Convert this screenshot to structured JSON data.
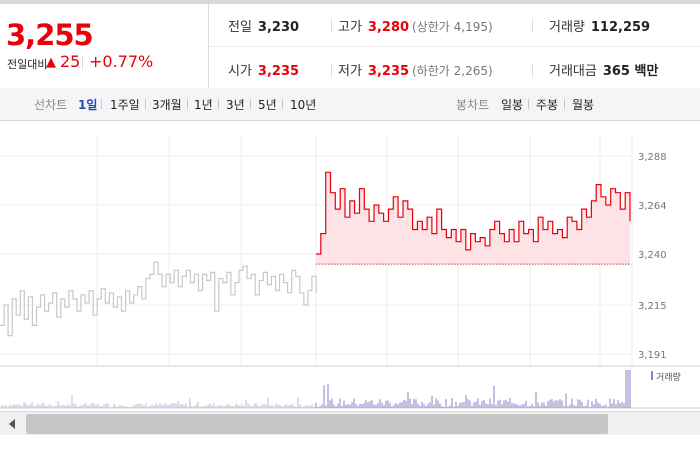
{
  "summary": {
    "price": "3,255",
    "change_label": "전일대비",
    "change_amount": "25",
    "change_rate": "+0.77%",
    "prev_close": {
      "label": "전일",
      "value": "3,230"
    },
    "high": {
      "label": "고가",
      "value": "3,280",
      "limit_label": "(상한가 4,195)"
    },
    "volume": {
      "label": "거래량",
      "value": "112,259"
    },
    "open": {
      "label": "시가",
      "value": "3,235"
    },
    "low": {
      "label": "저가",
      "value": "3,235",
      "limit_label": "(하한가 2,265)"
    },
    "trade_value": {
      "label": "거래대금",
      "value": "365 백만"
    }
  },
  "tabs": {
    "line_label": "선차트",
    "line_tabs": [
      "1일",
      "1주일",
      "3개월",
      "1년",
      "3년",
      "5년",
      "10년"
    ],
    "active": "1일",
    "candle_label": "봉차트",
    "candle_tabs": [
      "일봉",
      "주봉",
      "월봉"
    ]
  },
  "colors": {
    "up": "#e8000b",
    "prev_day_line": "#c8c8c8",
    "fill": "#fde3e5",
    "volume": "#8b82c9",
    "active_tab": "#2348c8"
  },
  "chart_data": {
    "type": "line",
    "title": "",
    "y_ticks": [
      "3,288",
      "3,264",
      "3,240",
      "3,215",
      "3,191"
    ],
    "ylim": [
      3191,
      3288
    ],
    "reference_price": 3235,
    "series": [
      {
        "values": [
          3205,
          3215,
          3200,
          3218,
          3210,
          3222,
          3208,
          3219,
          3205,
          3214,
          3220,
          3212,
          3216,
          3221,
          3209,
          3218,
          3214,
          3222,
          3218,
          3212,
          3220,
          3216,
          3222,
          3210,
          3218,
          3223,
          3216,
          3221,
          3214,
          3219,
          3212,
          3222,
          3216,
          3220,
          3224,
          3218,
          3228,
          3230,
          3236,
          3230,
          3224,
          3230,
          3226,
          3232,
          3224,
          3229,
          3232,
          3226,
          3230,
          3222,
          3230,
          3227,
          3231,
          3212,
          3228,
          3226,
          3231,
          3220,
          3226,
          3232,
          3234,
          3228,
          3230,
          3220,
          3227,
          3231,
          3225,
          3229,
          3222,
          3230,
          3226,
          3221,
          3232,
          3229,
          3221,
          3215,
          3222,
          3229,
          3221
        ]
      },
      {
        "values": [
          3240,
          3250,
          3280,
          3270,
          3262,
          3272,
          3258,
          3266,
          3260,
          3272,
          3262,
          3256,
          3264,
          3260,
          3256,
          3262,
          3268,
          3258,
          3266,
          3262,
          3252,
          3256,
          3252,
          3258,
          3250,
          3262,
          3252,
          3248,
          3252,
          3246,
          3252,
          3242,
          3250,
          3246,
          3248,
          3244,
          3252,
          3256,
          3250,
          3246,
          3252,
          3246,
          3256,
          3250,
          3252,
          3246,
          3258,
          3252,
          3256,
          3250,
          3252,
          3248,
          3258,
          3256,
          3252,
          3262,
          3258,
          3266,
          3274,
          3268,
          3264,
          3272,
          3270,
          3262,
          3270,
          3256
        ]
      }
    ],
    "volume_label": "거래량",
    "grid": true
  }
}
